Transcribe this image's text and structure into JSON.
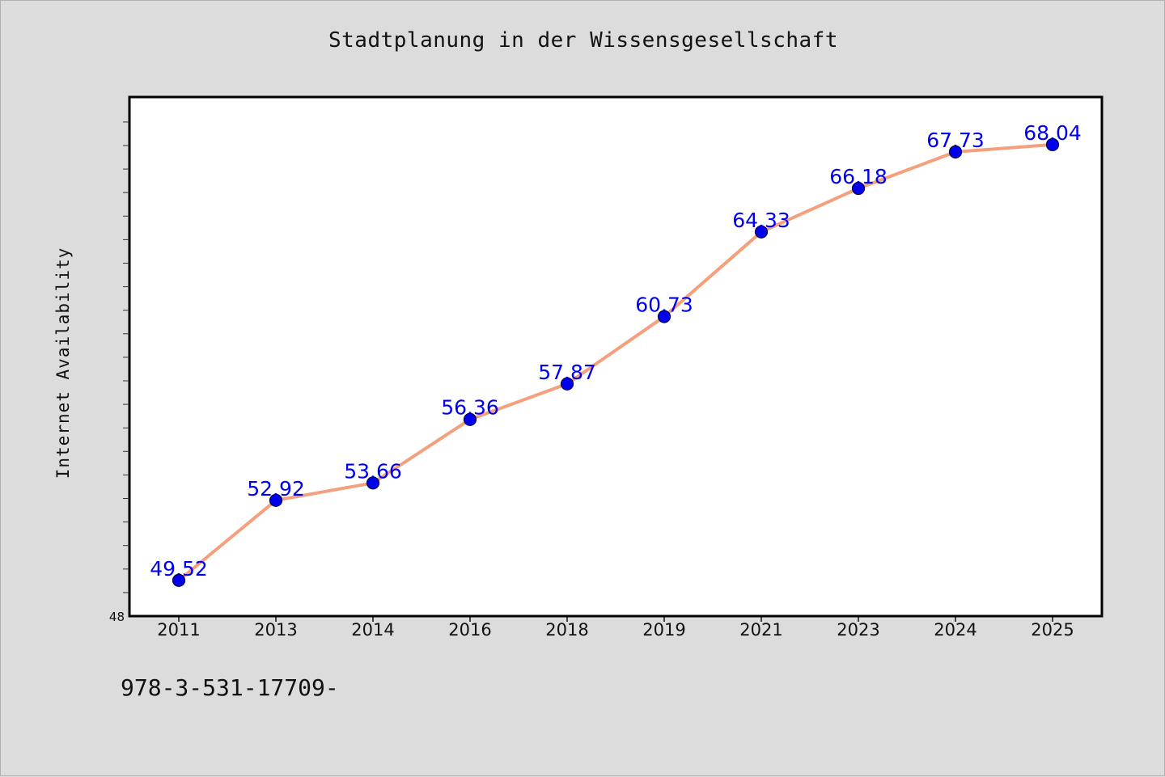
{
  "chart_data": {
    "type": "line",
    "title": "Stadtplanung in der Wissensgesellschaft",
    "xlabel": "",
    "ylabel": "Internet Availability",
    "categories": [
      "2011",
      "2013",
      "2014",
      "2016",
      "2018",
      "2019",
      "2021",
      "2023",
      "2024",
      "2025"
    ],
    "series": [
      {
        "values": [
          49.52,
          52.92,
          53.66,
          56.36,
          57.87,
          60.73,
          64.33,
          66.18,
          67.73,
          68.04
        ]
      }
    ],
    "data_labels": [
      "49.52",
      "52.92",
      "53.66",
      "56.36",
      "57.87",
      "60.73",
      "64.33",
      "66.18",
      "67.73",
      "68.04"
    ],
    "ylim": [
      48,
      70
    ],
    "y_tick_labels": [
      "48"
    ],
    "grid": false,
    "legend": "none",
    "colors": {
      "line": "#f4a07c",
      "marker": "#0000ee",
      "data_label": "#0000ee",
      "background": "#dcdcdc",
      "plot_background": "#ffffff"
    }
  },
  "footer": {
    "code": "978-3-531-17709-"
  }
}
